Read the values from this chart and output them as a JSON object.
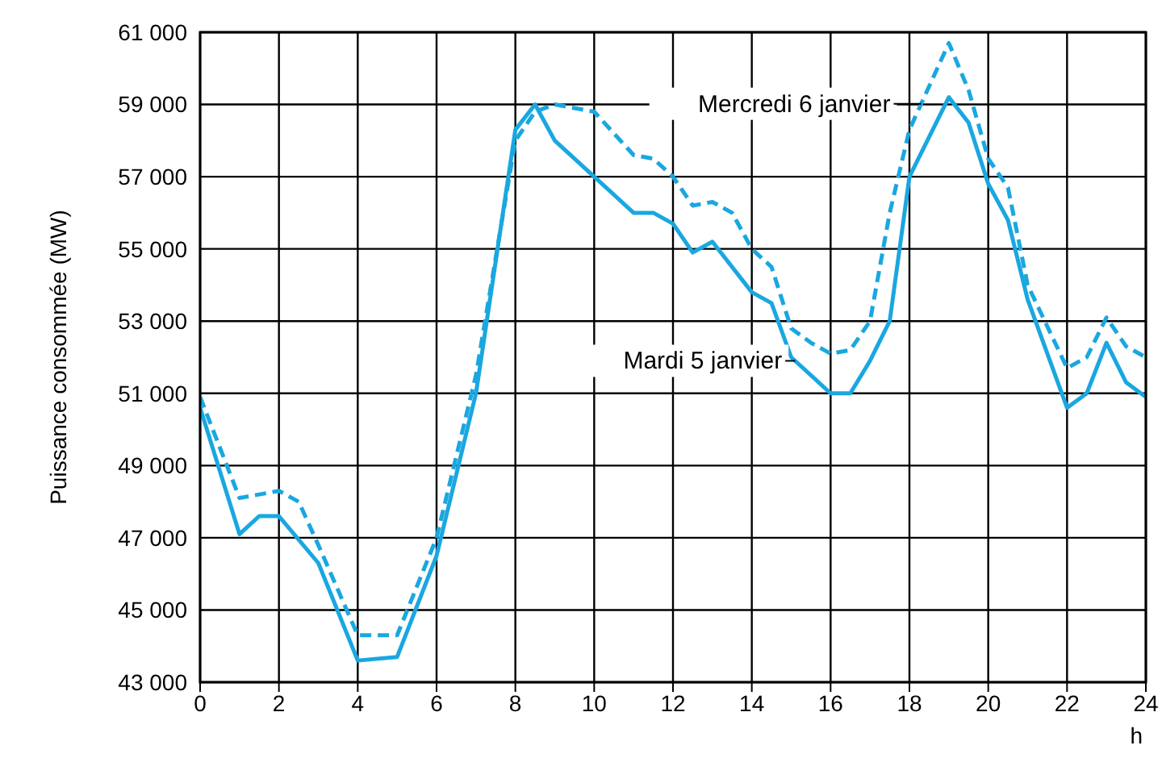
{
  "chart_data": {
    "type": "line",
    "ylabel": "Puissance consommée (MW)",
    "xlabel": "h",
    "xlim": [
      0,
      24
    ],
    "xticks": [
      0,
      2,
      4,
      6,
      8,
      10,
      12,
      14,
      16,
      18,
      20,
      22,
      24
    ],
    "ylim": [
      43000,
      61000
    ],
    "yticks": [
      {
        "value": 43000,
        "label": "43 000"
      },
      {
        "value": 45000,
        "label": "45 000"
      },
      {
        "value": 47000,
        "label": "47 000"
      },
      {
        "value": 49000,
        "label": "49 000"
      },
      {
        "value": 51000,
        "label": "51 000"
      },
      {
        "value": 53000,
        "label": "53 000"
      },
      {
        "value": 55000,
        "label": "55 000"
      },
      {
        "value": 57000,
        "label": "57 000"
      },
      {
        "value": 59000,
        "label": "59 000"
      },
      {
        "value": 61000,
        "label": "61 000"
      }
    ],
    "grid": true,
    "legend": false,
    "marker": "none",
    "series": [
      {
        "name": "Mardi 5 janvier",
        "color": "#1aa7e0",
        "line_style": "solid",
        "x": [
          0,
          1,
          1.5,
          2,
          3,
          4,
          5,
          6,
          7,
          8,
          8.5,
          9,
          10,
          11,
          11.5,
          12,
          12.5,
          13,
          14,
          14.5,
          15,
          16,
          16.5,
          17,
          17.5,
          18,
          19,
          19.5,
          20,
          20.5,
          21,
          22,
          22.5,
          23,
          23.5,
          24
        ],
        "values": [
          50600,
          47100,
          47600,
          47600,
          46300,
          43600,
          43700,
          46500,
          51000,
          58300,
          59000,
          58000,
          57000,
          56000,
          56000,
          55700,
          54900,
          55200,
          53800,
          53500,
          52000,
          51000,
          51000,
          51900,
          53000,
          57000,
          59200,
          58500,
          56800,
          55800,
          53600,
          50600,
          51000,
          52400,
          51300,
          50900
        ]
      },
      {
        "name": "Mercredi 6 janvier",
        "color": "#1aa7e0",
        "line_style": "dashed",
        "x": [
          0,
          1,
          2,
          2.5,
          3,
          4,
          5,
          6,
          7,
          8,
          8.5,
          9,
          10,
          10.5,
          11,
          11.5,
          12,
          12.5,
          13,
          13.5,
          14,
          14.5,
          15,
          15.5,
          16,
          16.5,
          17,
          17.5,
          18,
          19,
          19.5,
          20,
          20.5,
          21,
          22,
          22.5,
          23,
          23.5,
          24
        ],
        "values": [
          50900,
          48100,
          48300,
          48000,
          46800,
          44300,
          44300,
          47000,
          51500,
          58000,
          58800,
          59000,
          58800,
          58200,
          57600,
          57500,
          57000,
          56200,
          56300,
          56000,
          55000,
          54500,
          52800,
          52400,
          52100,
          52200,
          53000,
          56000,
          58300,
          60700,
          59400,
          57500,
          56700,
          54000,
          51700,
          52000,
          53100,
          52300,
          52000
        ]
      }
    ]
  }
}
